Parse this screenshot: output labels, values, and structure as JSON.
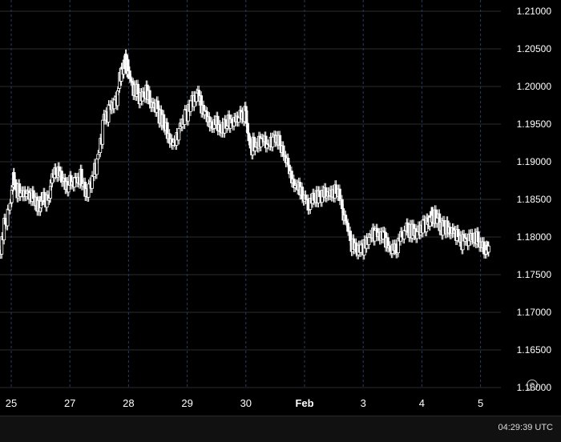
{
  "chart_data": {
    "type": "candlestick",
    "instrument_hint": "",
    "y_axis": {
      "ticks": [
        "1.21000",
        "1.20500",
        "1.20000",
        "1.19500",
        "1.19000",
        "1.18500",
        "1.18000",
        "1.17500",
        "1.17000",
        "1.16500",
        "1.16000"
      ],
      "ylim": [
        1.1575,
        1.2125
      ]
    },
    "x_axis": {
      "ticks": [
        {
          "label": "25",
          "pos": 0.0,
          "bold": false
        },
        {
          "label": "27",
          "pos": 1.0,
          "bold": false
        },
        {
          "label": "28",
          "pos": 2.0,
          "bold": false
        },
        {
          "label": "29",
          "pos": 3.0,
          "bold": false
        },
        {
          "label": "30",
          "pos": 4.0,
          "bold": false
        },
        {
          "label": "Feb",
          "pos": 5.0,
          "bold": true
        },
        {
          "label": "3",
          "pos": 6.0,
          "bold": false
        },
        {
          "label": "4",
          "pos": 7.0,
          "bold": false
        },
        {
          "label": "5",
          "pos": 8.0,
          "bold": false
        }
      ],
      "day_dividers": [
        0.0,
        1.0,
        2.0,
        3.0,
        4.0,
        5.0,
        6.0,
        7.0,
        8.0
      ]
    },
    "series": [
      {
        "points": [
          [
            -0.2,
            1.1778
          ],
          [
            -0.1,
            1.182
          ],
          [
            0.0,
            1.185
          ],
          [
            0.05,
            1.1885
          ],
          [
            0.1,
            1.1868
          ],
          [
            0.2,
            1.1862
          ],
          [
            0.3,
            1.186
          ],
          [
            0.4,
            1.1855
          ],
          [
            0.5,
            1.1848
          ],
          [
            0.55,
            1.186
          ],
          [
            0.65,
            1.1855
          ],
          [
            0.7,
            1.188
          ],
          [
            0.8,
            1.1895
          ],
          [
            0.9,
            1.188
          ],
          [
            1.0,
            1.1877
          ],
          [
            1.1,
            1.188
          ],
          [
            1.2,
            1.1885
          ],
          [
            1.3,
            1.1865
          ],
          [
            1.4,
            1.188
          ],
          [
            1.5,
            1.1912
          ],
          [
            1.6,
            1.196
          ],
          [
            1.7,
            1.1975
          ],
          [
            1.8,
            1.1985
          ],
          [
            1.88,
            1.202
          ],
          [
            1.95,
            1.204
          ],
          [
            2.0,
            1.203
          ],
          [
            2.1,
            1.2
          ],
          [
            2.2,
            1.1995
          ],
          [
            2.3,
            1.2
          ],
          [
            2.4,
            1.1985
          ],
          [
            2.5,
            1.1975
          ],
          [
            2.6,
            1.196
          ],
          [
            2.7,
            1.194
          ],
          [
            2.8,
            1.193
          ],
          [
            2.9,
            1.1955
          ],
          [
            3.0,
            1.1968
          ],
          [
            3.1,
            1.1982
          ],
          [
            3.2,
            1.199
          ],
          [
            3.3,
            1.1975
          ],
          [
            3.4,
            1.1955
          ],
          [
            3.5,
            1.196
          ],
          [
            3.6,
            1.1945
          ],
          [
            3.7,
            1.196
          ],
          [
            3.8,
            1.1963
          ],
          [
            3.9,
            1.1968
          ],
          [
            4.0,
            1.197
          ],
          [
            4.05,
            1.194
          ],
          [
            4.1,
            1.1925
          ],
          [
            4.2,
            1.193
          ],
          [
            4.3,
            1.1935
          ],
          [
            4.4,
            1.1925
          ],
          [
            4.5,
            1.194
          ],
          [
            4.6,
            1.193
          ],
          [
            4.7,
            1.191
          ],
          [
            4.8,
            1.1885
          ],
          [
            4.9,
            1.187
          ],
          [
            5.0,
            1.186
          ],
          [
            5.1,
            1.1852
          ],
          [
            5.2,
            1.186
          ],
          [
            5.3,
            1.1862
          ],
          [
            5.4,
            1.1858
          ],
          [
            5.5,
            1.1868
          ],
          [
            5.6,
            1.186
          ],
          [
            5.7,
            1.1835
          ],
          [
            5.8,
            1.18
          ],
          [
            5.9,
            1.1785
          ],
          [
            6.0,
            1.179
          ],
          [
            6.1,
            1.1805
          ],
          [
            6.2,
            1.1808
          ],
          [
            6.3,
            1.181
          ],
          [
            6.4,
            1.18
          ],
          [
            6.5,
            1.179
          ],
          [
            6.6,
            1.1795
          ],
          [
            6.7,
            1.1815
          ],
          [
            6.8,
            1.1815
          ],
          [
            6.9,
            1.181
          ],
          [
            7.0,
            1.182
          ],
          [
            7.1,
            1.1823
          ],
          [
            7.15,
            1.1832
          ],
          [
            7.2,
            1.1834
          ],
          [
            7.3,
            1.1828
          ],
          [
            7.4,
            1.1815
          ],
          [
            7.5,
            1.182
          ],
          [
            7.6,
            1.181
          ],
          [
            7.7,
            1.18
          ],
          [
            7.8,
            1.1802
          ],
          [
            7.9,
            1.1805
          ],
          [
            8.0,
            1.18
          ],
          [
            8.1,
            1.179
          ],
          [
            8.15,
            1.1788
          ]
        ]
      }
    ]
  },
  "footer": {
    "clock": "04:29:39 UTC"
  },
  "icons": {
    "settings": "settings-icon"
  },
  "colors": {
    "background": "#000000",
    "grid": "#2b2b2b",
    "divider": "#2a3a66",
    "candle": "#ffffff"
  }
}
